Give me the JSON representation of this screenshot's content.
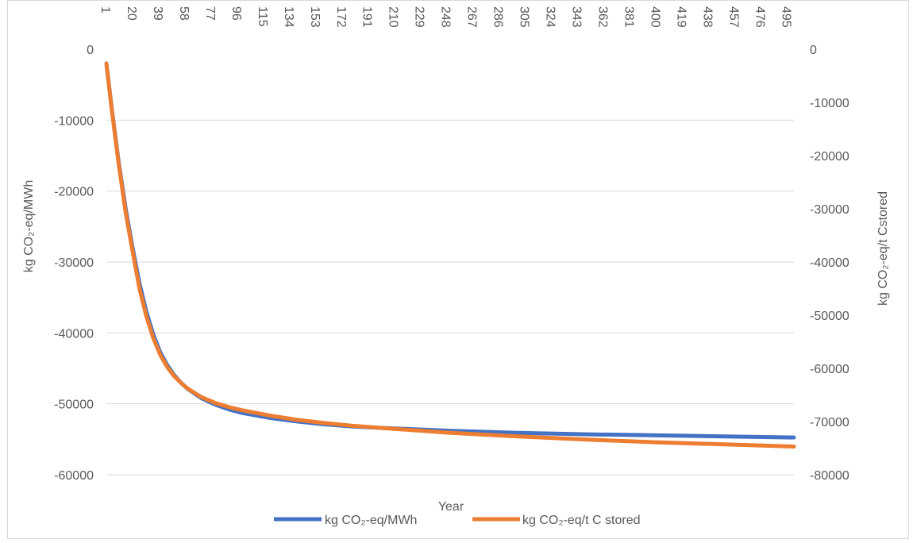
{
  "chart_data": {
    "type": "line",
    "title": "",
    "xlabel": "Year",
    "ylabel": "kg CO₂-eq/MWh",
    "y2label": "kg CO₂-eq/t Cstored",
    "x_ticks": [
      1,
      20,
      39,
      58,
      77,
      96,
      115,
      134,
      153,
      172,
      191,
      210,
      229,
      248,
      267,
      286,
      305,
      324,
      343,
      362,
      381,
      400,
      419,
      438,
      457,
      476,
      495
    ],
    "xlim": [
      1,
      500
    ],
    "ylim": [
      -60000,
      0
    ],
    "y_ticks": [
      0,
      -10000,
      -20000,
      -30000,
      -40000,
      -50000,
      -60000
    ],
    "y2lim": [
      -80000,
      0
    ],
    "y2_ticks": [
      0,
      -10000,
      -20000,
      -30000,
      -40000,
      -50000,
      -60000,
      -70000,
      -80000
    ],
    "grid": true,
    "legend_position": "bottom",
    "series": [
      {
        "name": "kg CO₂-eq/MWh",
        "axis": "left",
        "color": "#4472C4",
        "x": [
          1,
          5,
          10,
          15,
          20,
          25,
          30,
          35,
          40,
          45,
          50,
          55,
          60,
          70,
          80,
          90,
          100,
          120,
          140,
          160,
          180,
          200,
          250,
          300,
          350,
          400,
          450,
          500
        ],
        "y": [
          -2000,
          -8500,
          -16000,
          -22500,
          -28000,
          -33000,
          -37000,
          -40200,
          -42700,
          -44500,
          -45900,
          -47000,
          -47900,
          -49200,
          -50100,
          -50800,
          -51300,
          -52000,
          -52500,
          -52900,
          -53200,
          -53400,
          -53800,
          -54100,
          -54300,
          -54450,
          -54600,
          -54750
        ]
      },
      {
        "name": "kg CO₂-eq/t C stored",
        "axis": "right",
        "color": "#ED7D31",
        "x": [
          1,
          5,
          10,
          15,
          20,
          25,
          30,
          35,
          40,
          45,
          50,
          55,
          60,
          70,
          80,
          90,
          100,
          120,
          140,
          160,
          180,
          200,
          250,
          300,
          350,
          400,
          450,
          500
        ],
        "y": [
          -2700,
          -11500,
          -21700,
          -30700,
          -38000,
          -45000,
          -50200,
          -54300,
          -57400,
          -59700,
          -61400,
          -62700,
          -63800,
          -65400,
          -66500,
          -67300,
          -67900,
          -68900,
          -69700,
          -70300,
          -70800,
          -71200,
          -72100,
          -72800,
          -73400,
          -73900,
          -74300,
          -74700
        ]
      }
    ]
  }
}
